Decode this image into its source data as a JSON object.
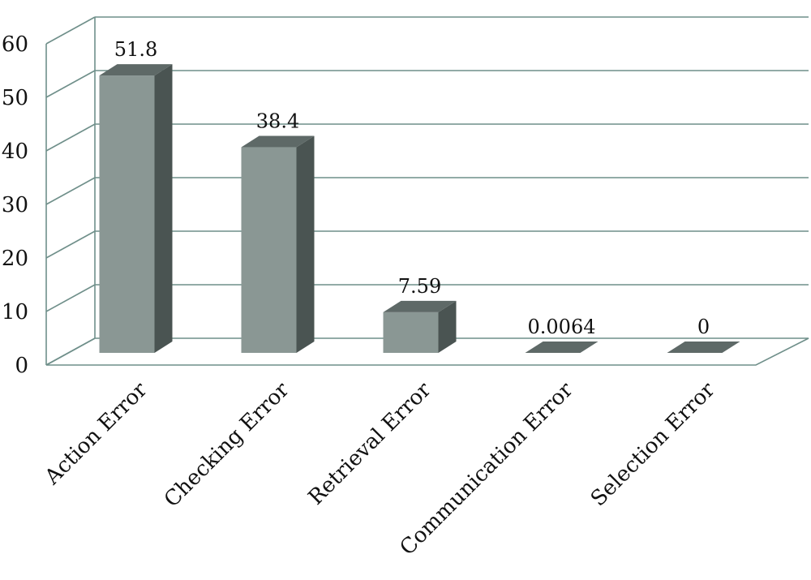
{
  "chart_data": {
    "type": "bar",
    "style": "3d-column",
    "categories": [
      "Action Error",
      "Checking Error",
      "Retrieval Error",
      "Communication Error",
      "Selection Error"
    ],
    "values": [
      51.8,
      38.4,
      7.59,
      0.0064,
      0
    ],
    "data_labels": [
      "51.8",
      "38.4",
      "7.59",
      "0.0064",
      "0"
    ],
    "y_ticks": [
      "0",
      "10",
      "20",
      "30",
      "40",
      "50",
      "60"
    ],
    "ylim": [
      0,
      60
    ],
    "grid": true,
    "legend": "none",
    "colors": {
      "bar_front": "#8a9794",
      "bar_side": "#4a5452",
      "bar_top": "#5e6967",
      "grid": "#6f8f8a"
    }
  }
}
